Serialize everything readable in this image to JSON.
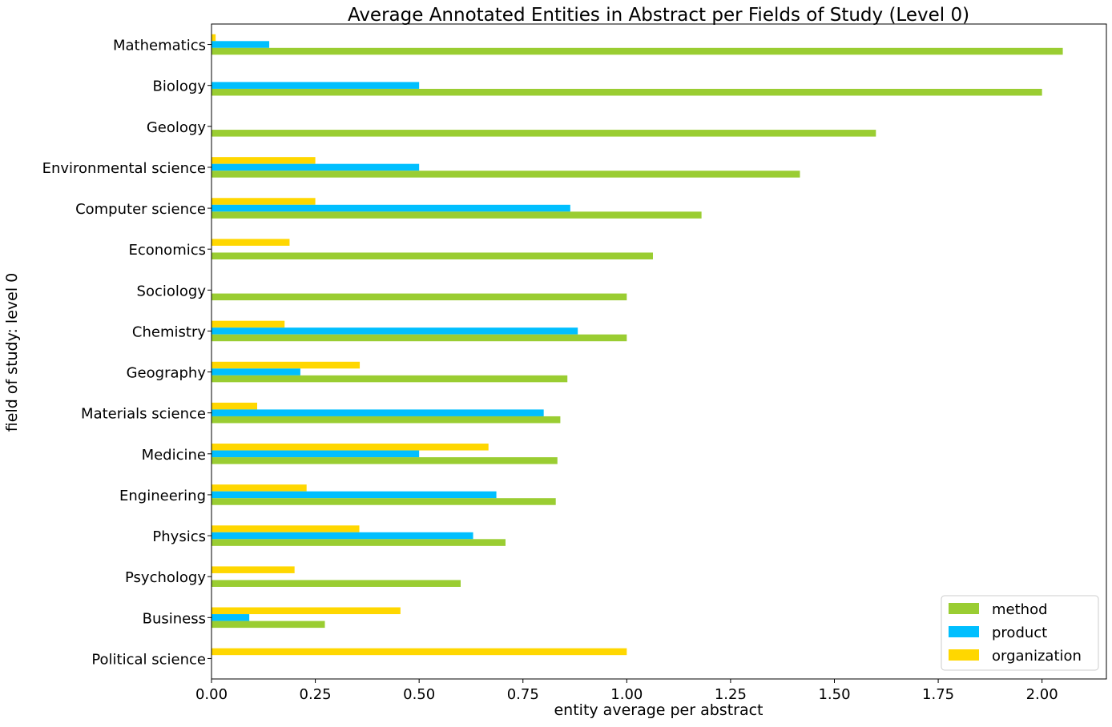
{
  "chart_data": {
    "type": "bar",
    "orientation": "horizontal",
    "title": "Average Annotated Entities in Abstract per Fields of Study (Level 0)",
    "xlabel": "entity average per abstract",
    "ylabel": "field of study: level 0",
    "xlim": [
      0,
      2.155
    ],
    "xticks": [
      "0.00",
      "0.25",
      "0.50",
      "0.75",
      "1.00",
      "1.25",
      "1.50",
      "1.75",
      "2.00"
    ],
    "grid": false,
    "legend_position": "bottom-right",
    "categories": [
      "Mathematics",
      "Biology",
      "Geology",
      "Environmental science",
      "Computer science",
      "Economics",
      "Sociology",
      "Chemistry",
      "Geography",
      "Materials science",
      "Medicine",
      "Engineering",
      "Physics",
      "Psychology",
      "Business",
      "Political science"
    ],
    "series": [
      {
        "name": "method",
        "color": "#9acd32",
        "values": [
          2.05,
          2.0,
          1.6,
          1.417,
          1.18,
          1.063,
          1.0,
          1.0,
          0.857,
          0.84,
          0.833,
          0.829,
          0.708,
          0.6,
          0.273,
          0
        ]
      },
      {
        "name": "product",
        "color": "#00bfff",
        "values": [
          0.139,
          0.5,
          0,
          0.5,
          0.864,
          0,
          0,
          0.882,
          0.214,
          0.8,
          0.5,
          0.686,
          0.63,
          0,
          0.091,
          0
        ]
      },
      {
        "name": "organization",
        "color": "#ffd700",
        "values": [
          0.01,
          0,
          0,
          0.25,
          0.25,
          0.188,
          0,
          0.176,
          0.357,
          0.11,
          0.667,
          0.229,
          0.356,
          0.2,
          0.455,
          1.0
        ]
      }
    ]
  }
}
